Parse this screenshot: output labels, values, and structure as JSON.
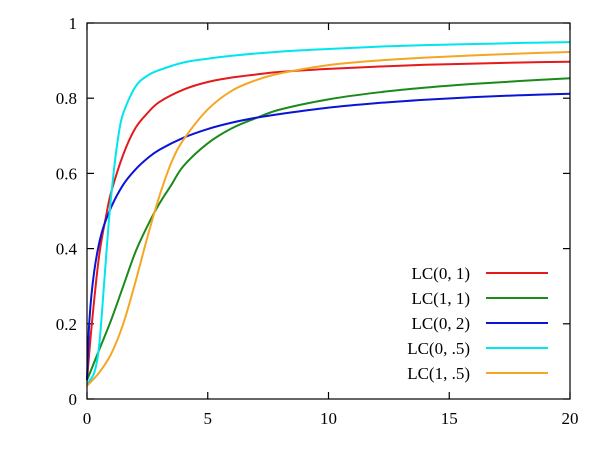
{
  "chart_data": {
    "type": "line",
    "title": "",
    "xlabel": "",
    "ylabel": "",
    "xlim": [
      0,
      20
    ],
    "ylim": [
      0,
      1
    ],
    "x_ticks": [
      0,
      5,
      10,
      15,
      20
    ],
    "y_ticks": [
      0,
      0.2,
      0.4,
      0.6,
      0.8,
      1
    ],
    "x_tick_labels": [
      "0",
      "5",
      "10",
      "15",
      "20"
    ],
    "y_tick_labels": [
      "0",
      "0.2",
      "0.4",
      "0.6",
      "0.8",
      "1"
    ],
    "grid": false,
    "legend_position": "bottom-right",
    "series": [
      {
        "name": "LC(0, 1)",
        "color": "#e41a1c",
        "points": [
          [
            0,
            0.05
          ],
          [
            0.2,
            0.2
          ],
          [
            0.5,
            0.38
          ],
          [
            0.8,
            0.49
          ],
          [
            1,
            0.55
          ],
          [
            1.5,
            0.65
          ],
          [
            2,
            0.72
          ],
          [
            2.5,
            0.76
          ],
          [
            3,
            0.79
          ],
          [
            4,
            0.823
          ],
          [
            5,
            0.843
          ],
          [
            6,
            0.855
          ],
          [
            7,
            0.863
          ],
          [
            8,
            0.87
          ],
          [
            10,
            0.878
          ],
          [
            12,
            0.884
          ],
          [
            14,
            0.889
          ],
          [
            16,
            0.892
          ],
          [
            18,
            0.895
          ],
          [
            20,
            0.897
          ]
        ]
      },
      {
        "name": "LC(1, 1)",
        "color": "#1a8a1a",
        "points": [
          [
            0,
            0.05
          ],
          [
            0.5,
            0.13
          ],
          [
            1,
            0.21
          ],
          [
            1.5,
            0.3
          ],
          [
            2,
            0.39
          ],
          [
            2.5,
            0.46
          ],
          [
            3,
            0.52
          ],
          [
            3.5,
            0.57
          ],
          [
            4,
            0.62
          ],
          [
            5,
            0.68
          ],
          [
            6,
            0.72
          ],
          [
            7,
            0.747
          ],
          [
            8,
            0.77
          ],
          [
            10,
            0.797
          ],
          [
            12,
            0.815
          ],
          [
            14,
            0.828
          ],
          [
            16,
            0.838
          ],
          [
            18,
            0.846
          ],
          [
            20,
            0.853
          ]
        ]
      },
      {
        "name": "LC(0, 2)",
        "color": "#0a14d4",
        "points": [
          [
            0,
            0.05
          ],
          [
            0.1,
            0.21
          ],
          [
            0.3,
            0.34
          ],
          [
            0.6,
            0.44
          ],
          [
            1,
            0.51
          ],
          [
            1.5,
            0.57
          ],
          [
            2,
            0.61
          ],
          [
            2.5,
            0.64
          ],
          [
            3,
            0.663
          ],
          [
            4,
            0.695
          ],
          [
            5,
            0.718
          ],
          [
            6,
            0.735
          ],
          [
            7,
            0.748
          ],
          [
            8,
            0.758
          ],
          [
            10,
            0.775
          ],
          [
            12,
            0.787
          ],
          [
            14,
            0.796
          ],
          [
            16,
            0.803
          ],
          [
            18,
            0.808
          ],
          [
            20,
            0.812
          ]
        ]
      },
      {
        "name": "LC(0, .5)",
        "color": "#00e5ee",
        "points": [
          [
            0,
            0.04
          ],
          [
            0.3,
            0.07
          ],
          [
            0.5,
            0.14
          ],
          [
            0.7,
            0.3
          ],
          [
            0.9,
            0.47
          ],
          [
            1.1,
            0.6
          ],
          [
            1.3,
            0.7
          ],
          [
            1.5,
            0.76
          ],
          [
            2,
            0.83
          ],
          [
            2.5,
            0.86
          ],
          [
            3,
            0.875
          ],
          [
            4,
            0.895
          ],
          [
            5,
            0.905
          ],
          [
            6,
            0.913
          ],
          [
            8,
            0.924
          ],
          [
            10,
            0.931
          ],
          [
            12,
            0.937
          ],
          [
            14,
            0.941
          ],
          [
            16,
            0.944
          ],
          [
            18,
            0.947
          ],
          [
            20,
            0.949
          ]
        ]
      },
      {
        "name": "LC(1, .5)",
        "color": "#f5a623",
        "points": [
          [
            0,
            0.035
          ],
          [
            0.5,
            0.07
          ],
          [
            1,
            0.12
          ],
          [
            1.5,
            0.2
          ],
          [
            2,
            0.31
          ],
          [
            2.5,
            0.43
          ],
          [
            3,
            0.54
          ],
          [
            3.5,
            0.63
          ],
          [
            4,
            0.69
          ],
          [
            5,
            0.77
          ],
          [
            6,
            0.82
          ],
          [
            7,
            0.848
          ],
          [
            8,
            0.866
          ],
          [
            10,
            0.888
          ],
          [
            12,
            0.9
          ],
          [
            14,
            0.908
          ],
          [
            16,
            0.914
          ],
          [
            18,
            0.919
          ],
          [
            20,
            0.923
          ]
        ]
      }
    ]
  }
}
